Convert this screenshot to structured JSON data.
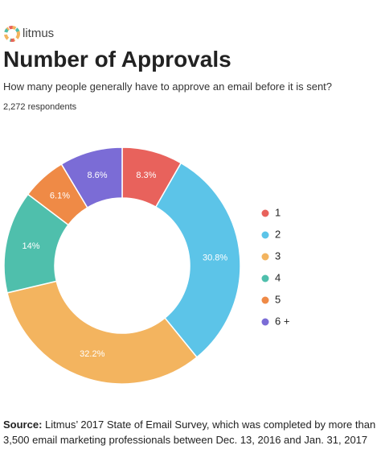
{
  "brand": "litmus",
  "chart_data": {
    "type": "donut",
    "title": "Number of Approvals",
    "subtitle": "How many people generally have to approve an email before it is sent?",
    "note": "2,272 respondents",
    "categories": [
      "1",
      "2",
      "3",
      "4",
      "5",
      "6 +"
    ],
    "values": [
      8.3,
      30.8,
      32.2,
      14,
      6.1,
      8.6
    ],
    "value_labels": [
      "8.3%",
      "30.8%",
      "32.2%",
      "14%",
      "6.1%",
      "8.6%"
    ],
    "colors": [
      "#e8625c",
      "#5cc4e8",
      "#f3b45f",
      "#4fbfac",
      "#ef8a46",
      "#7b6cd6"
    ],
    "legend": "right",
    "source_label": "Source:",
    "source": "Litmus’ 2017 State of Email Survey, which was completed by more than 3,500 email marketing professionals between Dec. 13, 2016 and Jan. 31, 2017"
  }
}
